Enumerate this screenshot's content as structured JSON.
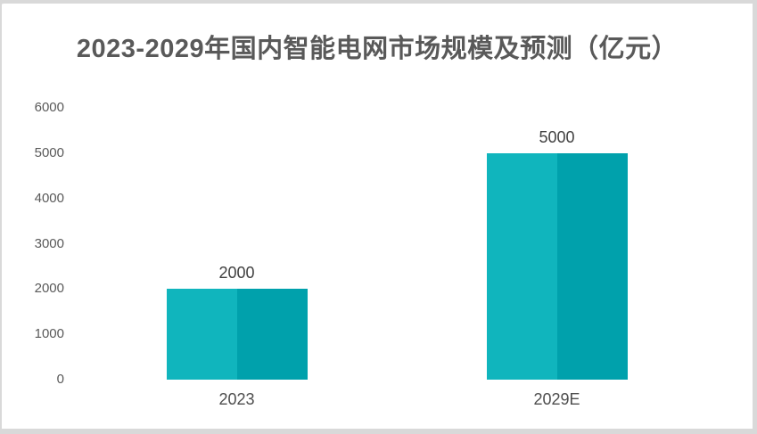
{
  "chart_data": {
    "type": "bar",
    "title": "2023-2029年国内智能电网市场规模及预测（亿元）",
    "categories": [
      "2023",
      "2029E"
    ],
    "values": [
      2000,
      5000
    ],
    "data_labels": [
      "2000",
      "5000"
    ],
    "yticks": [
      0,
      1000,
      2000,
      3000,
      4000,
      5000,
      6000
    ],
    "ytick_labels": [
      "0",
      "1000",
      "2000",
      "3000",
      "4000",
      "5000",
      "6000"
    ],
    "ylim": [
      0,
      6000
    ],
    "xlabel": "",
    "ylabel": "",
    "grid": false,
    "legend": false
  },
  "colors": {
    "bar_left_half": "#10B5BD",
    "bar_right_half": "#00A1AC",
    "title_text": "#595959",
    "tick_text": "#595959",
    "value_label_text": "#404040",
    "category_label_text": "#4D4D4D",
    "card_background": "#FFFFFF",
    "frame": "#D9D9D9"
  }
}
